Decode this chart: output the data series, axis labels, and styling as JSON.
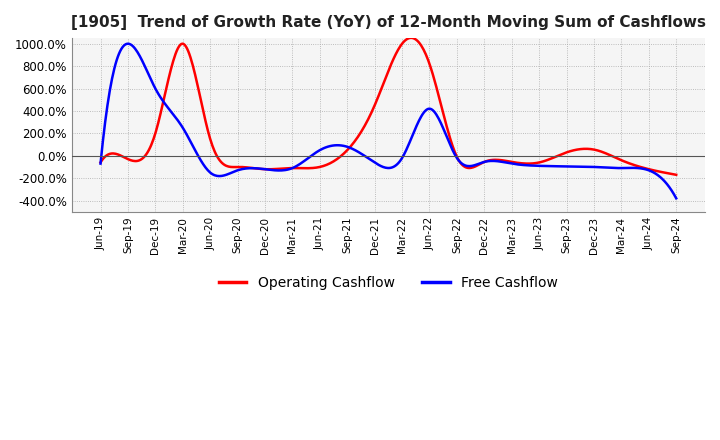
{
  "title": "[1905]  Trend of Growth Rate (YoY) of 12-Month Moving Sum of Cashflows",
  "title_fontsize": 11,
  "ylim": [
    -500,
    1050
  ],
  "yticks": [
    -400,
    -200,
    0,
    200,
    400,
    600,
    800,
    1000
  ],
  "background_color": "#ffffff",
  "plot_bg_color": "#f5f5f5",
  "grid_color": "#aaaaaa",
  "x_labels": [
    "Jun-19",
    "Sep-19",
    "Dec-19",
    "Mar-20",
    "Jun-20",
    "Sep-20",
    "Dec-20",
    "Mar-21",
    "Jun-21",
    "Sep-21",
    "Dec-21",
    "Mar-22",
    "Jun-22",
    "Sep-22",
    "Dec-22",
    "Mar-23",
    "Jun-23",
    "Sep-23",
    "Dec-23",
    "Mar-24",
    "Jun-24",
    "Sep-24"
  ],
  "operating_cashflow": [
    -60,
    -30,
    200,
    1000,
    150,
    -100,
    -120,
    -110,
    -100,
    50,
    450,
    1000,
    820,
    -10,
    -55,
    -55,
    -60,
    30,
    55,
    -40,
    -120,
    -170
  ],
  "free_cashflow": [
    -70,
    1000,
    600,
    250,
    -150,
    -130,
    -120,
    -110,
    50,
    80,
    -60,
    -20,
    420,
    -20,
    -55,
    -70,
    -90,
    -95,
    -100,
    -110,
    -130,
    -380
  ],
  "operating_color": "#ff0000",
  "free_color": "#0000ff",
  "line_width": 1.8
}
